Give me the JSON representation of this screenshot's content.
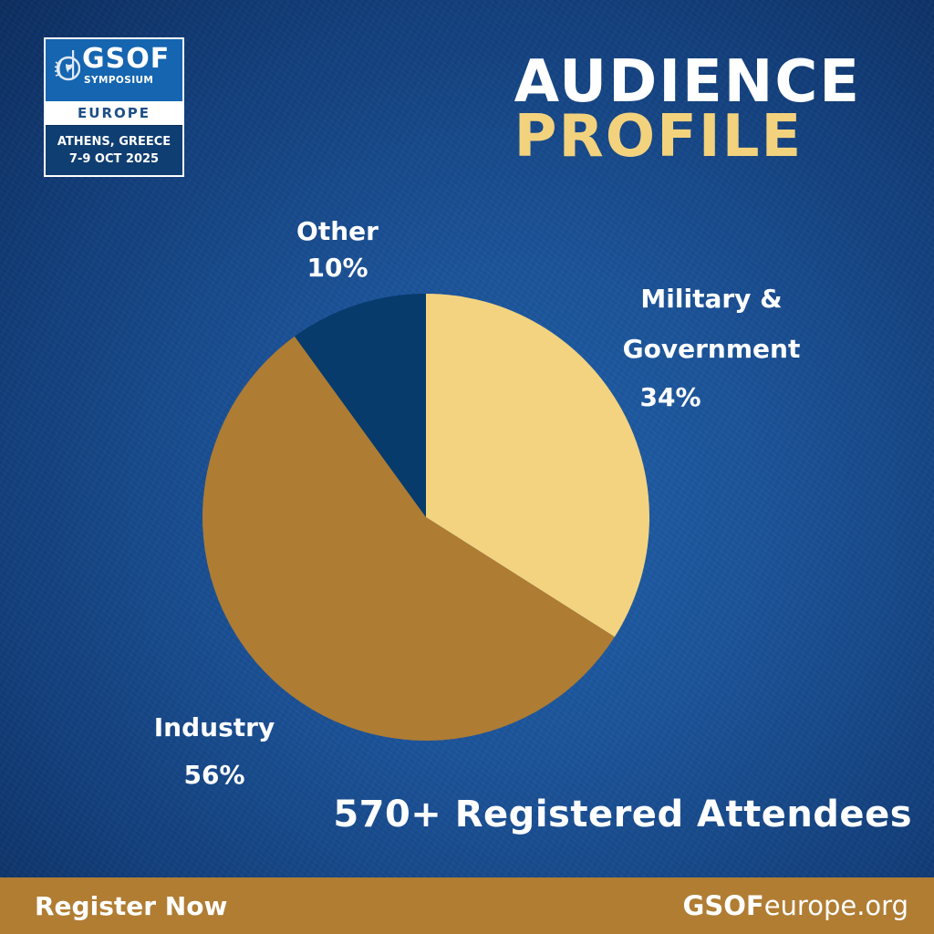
{
  "logo": {
    "brand": "GSOF",
    "subtitle": "SYMPOSIUM",
    "region": "EUROPE",
    "location": "ATHENS, GREECE",
    "dates": "7-9 OCT 2025",
    "emblem_icon": "globe-laurel-icon"
  },
  "title": {
    "line1": "AUDIENCE",
    "line2": "PROFILE"
  },
  "chart_data": {
    "type": "pie",
    "title": "Audience Profile",
    "categories": [
      "Military & Government",
      "Industry",
      "Other"
    ],
    "values": [
      34,
      56,
      10
    ],
    "unit": "%",
    "colors": [
      "#f3d380",
      "#ae7c33",
      "#063b6b"
    ],
    "start_angle": "12 o'clock",
    "direction": "clockwise",
    "legend": "none (direct labels)"
  },
  "labels": {
    "other_name": "Other",
    "other_pct": "10%",
    "military_line1": "Military &",
    "military_line2": "Government",
    "military_pct": "34%",
    "industry_name": "Industry",
    "industry_pct": "56%"
  },
  "attendees": "570+ Registered Attendees",
  "footer": {
    "register_label": "Register Now",
    "site_bold": "GSOF",
    "site_rest": "europe.org"
  },
  "colors": {
    "background": "#1b5399",
    "accent_gold": "#b07d33",
    "title_gold": "#f3d27d",
    "logo_blue": "#1565b0",
    "logo_navy": "#0f3e72"
  }
}
